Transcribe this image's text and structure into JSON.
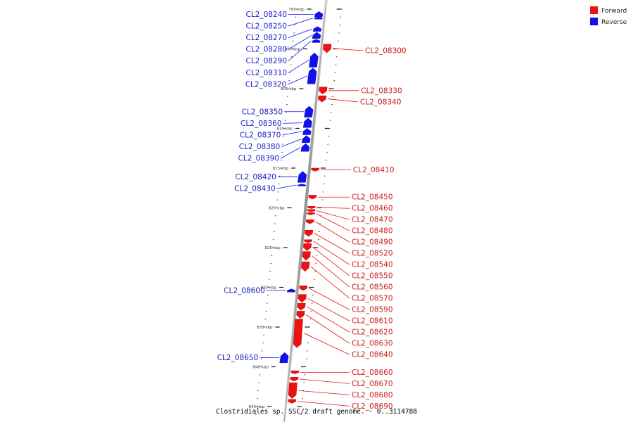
{
  "caption": "Clostridiales sp. SSC/2 draft genome. - 0..3114788",
  "legend": [
    {
      "label": "Forward",
      "color": "#ee1111"
    },
    {
      "label": "Reverse",
      "color": "#1111ee"
    }
  ],
  "ticks": [
    {
      "kbp": 795,
      "label": "795 kbp"
    },
    {
      "kbp": 800,
      "label": "800 kbp"
    },
    {
      "kbp": 805,
      "label": "805 kbp"
    },
    {
      "kbp": 810,
      "label": "810 kbp"
    },
    {
      "kbp": 815,
      "label": "815 kbp"
    },
    {
      "kbp": 820,
      "label": "820 kbp"
    },
    {
      "kbp": 825,
      "label": "825 kbp"
    },
    {
      "kbp": 830,
      "label": "830 kbp"
    },
    {
      "kbp": 835,
      "label": "835 kbp"
    },
    {
      "kbp": 840,
      "label": "840 kbp"
    },
    {
      "kbp": 845,
      "label": "845 kbp"
    }
  ],
  "genes": [
    {
      "id": "CL2_08240",
      "strand": "reverse",
      "start": 795.3,
      "end": 796.0
    },
    {
      "id": "CL2_08250",
      "strand": "reverse",
      "start": 796.0,
      "end": 796.2
    },
    {
      "id": "CL2_08270",
      "strand": "reverse",
      "start": 797.2,
      "end": 797.8
    },
    {
      "id": "CL2_08280",
      "strand": "reverse",
      "start": 797.9,
      "end": 798.7
    },
    {
      "id": "CL2_08290",
      "strand": "reverse",
      "start": 798.8,
      "end": 799.2
    },
    {
      "id": "CL2_08300",
      "strand": "forward",
      "start": 799.4,
      "end": 800.5
    },
    {
      "id": "CL2_08310",
      "strand": "reverse",
      "start": 800.5,
      "end": 802.3
    },
    {
      "id": "CL2_08320",
      "strand": "reverse",
      "start": 802.4,
      "end": 804.4
    },
    {
      "id": "CL2_08330",
      "strand": "forward",
      "start": 804.8,
      "end": 805.7
    },
    {
      "id": "CL2_08340",
      "strand": "forward",
      "start": 805.9,
      "end": 806.7
    },
    {
      "id": "CL2_08350",
      "strand": "reverse",
      "start": 807.2,
      "end": 808.6
    },
    {
      "id": "CL2_08360",
      "strand": "reverse",
      "start": 808.7,
      "end": 809.9
    },
    {
      "id": "CL2_08370",
      "strand": "reverse",
      "start": 810.0,
      "end": 810.8
    },
    {
      "id": "CL2_08380",
      "strand": "reverse",
      "start": 810.9,
      "end": 811.8
    },
    {
      "id": "CL2_08390",
      "strand": "reverse",
      "start": 811.9,
      "end": 812.9
    },
    {
      "id": "CL2_08410",
      "strand": "forward",
      "start": 815.0,
      "end": 815.4
    },
    {
      "id": "CL2_08420",
      "strand": "reverse",
      "start": 815.4,
      "end": 816.8
    },
    {
      "id": "CL2_08430",
      "strand": "reverse",
      "start": 817.0,
      "end": 817.2
    },
    {
      "id": "CL2_08450",
      "strand": "forward",
      "start": 818.4,
      "end": 818.9
    },
    {
      "id": "CL2_08460",
      "strand": "forward",
      "start": 819.8,
      "end": 820.1
    },
    {
      "id": "CL2_08470",
      "strand": "forward",
      "start": 820.2,
      "end": 820.5
    },
    {
      "id": "CL2_08480",
      "strand": "forward",
      "start": 820.6,
      "end": 820.9
    },
    {
      "id": "CL2_08490",
      "strand": "forward",
      "start": 821.5,
      "end": 822.0
    },
    {
      "id": "CL2_08520",
      "strand": "forward",
      "start": 822.8,
      "end": 823.6
    },
    {
      "id": "CL2_08540",
      "strand": "forward",
      "start": 824.0,
      "end": 824.4
    },
    {
      "id": "CL2_08550",
      "strand": "forward",
      "start": 824.5,
      "end": 825.4
    },
    {
      "id": "CL2_08560",
      "strand": "forward",
      "start": 825.5,
      "end": 826.6
    },
    {
      "id": "CL2_08570",
      "strand": "forward",
      "start": 826.8,
      "end": 828.0
    },
    {
      "id": "CL2_08590",
      "strand": "forward",
      "start": 829.8,
      "end": 830.4
    },
    {
      "id": "CL2_08600",
      "strand": "reverse",
      "start": 830.2,
      "end": 830.6
    },
    {
      "id": "CL2_08610",
      "strand": "forward",
      "start": 830.9,
      "end": 831.9
    },
    {
      "id": "CL2_08620",
      "strand": "forward",
      "start": 832.0,
      "end": 832.9
    },
    {
      "id": "CL2_08630",
      "strand": "forward",
      "start": 833.0,
      "end": 833.9
    },
    {
      "id": "CL2_08640",
      "strand": "forward",
      "start": 834.0,
      "end": 837.6
    },
    {
      "id": "CL2_08650",
      "strand": "reverse",
      "start": 838.2,
      "end": 839.5
    },
    {
      "id": "CL2_08660",
      "strand": "forward",
      "start": 840.5,
      "end": 840.9
    },
    {
      "id": "CL2_08670",
      "strand": "forward",
      "start": 841.3,
      "end": 841.8
    },
    {
      "id": "CL2_08680",
      "strand": "forward",
      "start": 842.0,
      "end": 844.0
    },
    {
      "id": "CL2_08690",
      "strand": "forward",
      "start": 844.1,
      "end": 844.6
    }
  ],
  "colors": {
    "forward": "#ee1111",
    "reverse": "#1111ee",
    "backbone": "#999999"
  }
}
